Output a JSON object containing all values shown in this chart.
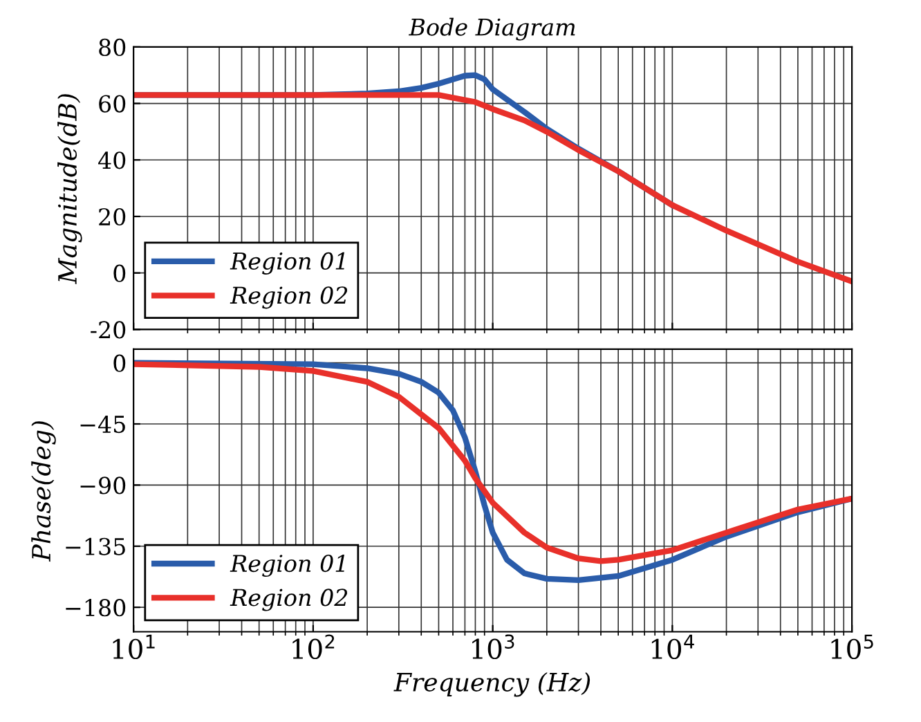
{
  "chart_data": [
    {
      "type": "line",
      "title": "Bode Diagram",
      "ylabel": "Magnitude(dB)",
      "log": "x",
      "xlim": [
        10,
        100000
      ],
      "ylim": [
        -20,
        80
      ],
      "yticks": [
        -20,
        0,
        20,
        40,
        60,
        80
      ],
      "tick_labels": "y",
      "grid": true,
      "legend": "bottom left",
      "line_style": "solid",
      "marker": "none",
      "series": [
        {
          "name": "Region 01",
          "color": "#2a5caa",
          "x": [
            10,
            100,
            150,
            200,
            300,
            400,
            500,
            600,
            700,
            800,
            900,
            1000,
            1500,
            2000,
            3000,
            5000,
            10000
          ],
          "values": [
            63,
            63,
            63.3,
            63.5,
            64.3,
            65.5,
            67,
            68.5,
            69.8,
            70,
            68.5,
            65,
            57,
            51,
            44,
            36,
            24
          ]
        },
        {
          "name": "Region 02",
          "color": "#e8302a",
          "x": [
            10,
            100,
            200,
            500,
            600,
            800,
            1000,
            1500,
            2000,
            3000,
            5000,
            10000,
            20000,
            50000,
            100000
          ],
          "values": [
            63,
            63,
            63,
            63,
            62,
            60.5,
            58,
            54,
            50,
            43.5,
            36,
            24,
            15,
            4,
            -3
          ]
        }
      ]
    },
    {
      "type": "line",
      "xlabel": "Frequency (Hz)",
      "ylabel": "Phase(deg)",
      "log": "x",
      "xlim": [
        10,
        100000
      ],
      "xticks": [
        {
          "value": 10,
          "label": "10$^{1}$"
        },
        {
          "value": 100,
          "label": "10$^{2}$"
        },
        {
          "value": 1000,
          "label": "10$^{3}$"
        },
        {
          "value": 10000,
          "label": "10$^{4}$"
        },
        {
          "value": 100000,
          "label": "10$^{5}$"
        }
      ],
      "ylim": [
        -198,
        10
      ],
      "yticks": [
        {
          "value": 0,
          "label": "0"
        },
        {
          "value": -45,
          "label": "−45"
        },
        {
          "value": -90,
          "label": "−90"
        },
        {
          "value": -135,
          "label": "−135"
        },
        {
          "value": -180,
          "label": "−180"
        }
      ],
      "grid": true,
      "legend": "bottom left",
      "line_style": "solid",
      "marker": "none",
      "series": [
        {
          "name": "Region 01",
          "color": "#2a5caa",
          "x": [
            10,
            100,
            200,
            300,
            400,
            500,
            600,
            700,
            800,
            900,
            1000,
            1200,
            1500,
            2000,
            3000,
            5000,
            10000,
            20000,
            50000,
            100000
          ],
          "values": [
            0,
            -1,
            -4,
            -8,
            -14,
            -22,
            -35,
            -55,
            -80,
            -105,
            -125,
            -145,
            -155,
            -159,
            -160,
            -157,
            -145,
            -128,
            -110,
            -100
          ]
        },
        {
          "name": "Region 02",
          "color": "#e8302a",
          "x": [
            10,
            50,
            100,
            200,
            300,
            500,
            700,
            800,
            1000,
            1500,
            2000,
            3000,
            4000,
            5000,
            10000,
            20000,
            50000,
            100000
          ],
          "values": [
            -1,
            -3,
            -6,
            -14,
            -25,
            -48,
            -72,
            -85,
            -103,
            -125,
            -136,
            -144,
            -146,
            -145,
            -138,
            -125,
            -108,
            -100
          ]
        }
      ]
    }
  ]
}
